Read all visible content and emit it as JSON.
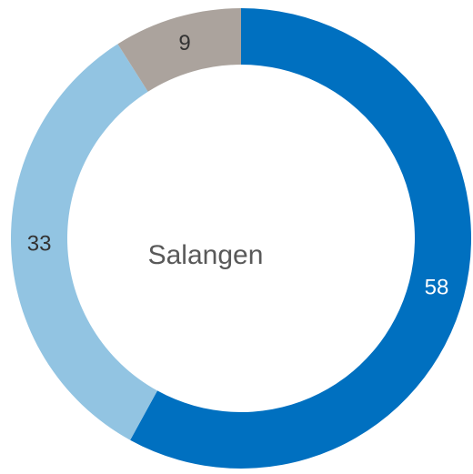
{
  "chart_data": {
    "type": "donut",
    "center_label": "Salangen",
    "categories": [
      null,
      null,
      null
    ],
    "values": [
      58,
      33,
      9
    ],
    "colors": [
      "#0070c0",
      "#92c4e2",
      "#aba39d"
    ]
  }
}
